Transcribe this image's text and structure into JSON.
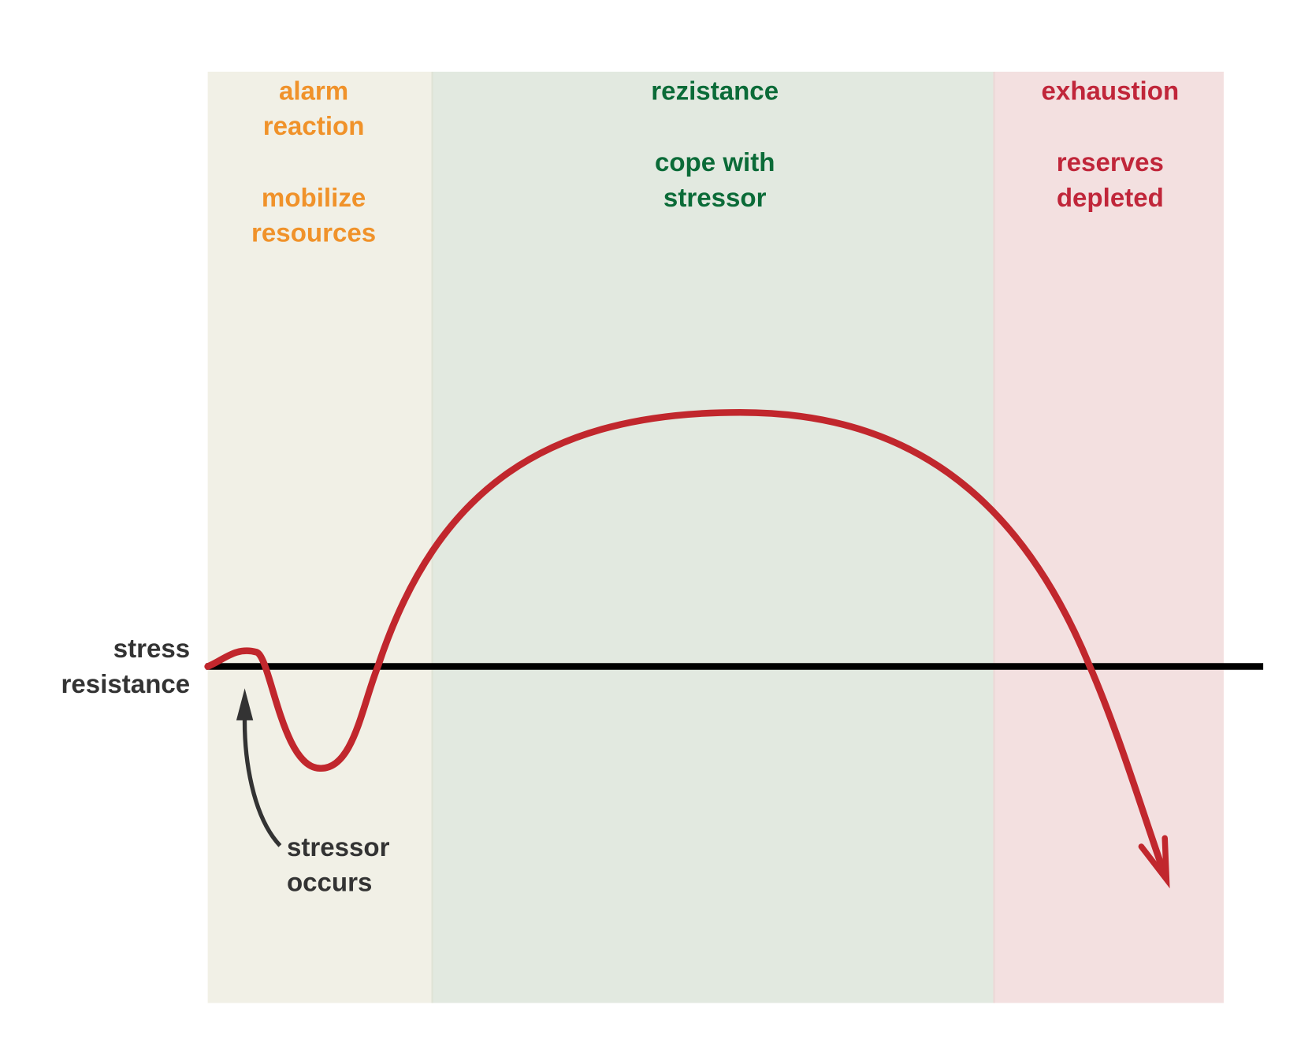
{
  "phases": [
    {
      "title": [
        "alarm",
        "reaction"
      ],
      "description": [
        "mobilize",
        "resources"
      ]
    },
    {
      "title": [
        "rezistance"
      ],
      "description": [
        "cope with",
        "stressor"
      ]
    },
    {
      "title": [
        "exhaustion"
      ],
      "description": [
        "reserves",
        "depleted"
      ]
    }
  ],
  "baseline_label": [
    "stress",
    "resistance"
  ],
  "annotation": [
    "stressor",
    "occurs"
  ]
}
